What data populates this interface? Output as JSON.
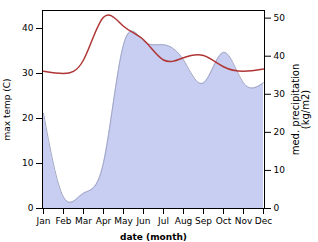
{
  "chart_data": {
    "type": "line",
    "xlabel": "date (month)",
    "ylabel": "max temp (C)",
    "y2label": "med. precipitation\n(kg/m2)",
    "categories": [
      "Jan",
      "Feb",
      "Mar",
      "Apr",
      "May",
      "Jun",
      "Jul",
      "Aug",
      "Sep",
      "Oct",
      "Nov",
      "Dec"
    ],
    "series": [
      {
        "values": [
          30.5,
          30.0,
          33.0,
          42.5,
          40.5,
          37.5,
          33.0,
          33.5,
          34.0,
          31.5,
          30.5,
          31.0
        ],
        "color": "#b03535"
      },
      {
        "type": "area",
        "axis": "y2",
        "values": [
          25,
          3,
          4,
          12,
          43,
          44,
          43,
          39,
          33,
          41,
          33,
          33
        ],
        "color": "#c8cef2"
      }
    ],
    "ylim": [
      0,
      44
    ],
    "yticks": [
      0,
      10,
      20,
      30,
      40
    ],
    "y2lim": [
      0,
      52
    ],
    "y2ticks": [
      0,
      10,
      20,
      30,
      40,
      50
    ],
    "grid": false
  }
}
